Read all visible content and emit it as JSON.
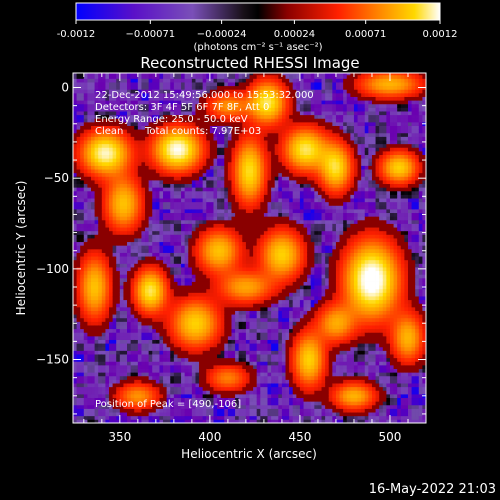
{
  "chart_data": {
    "type": "heatmap",
    "title": "Reconstructed RHESSI Image",
    "xlabel": "Heliocentric X (arcsec)",
    "ylabel": "Heliocentric Y (arcsec)",
    "xlim": [
      324,
      520
    ],
    "ylim": [
      -185,
      8
    ],
    "x_ticks": [
      350,
      400,
      450,
      500
    ],
    "y_ticks": [
      0,
      -50,
      -100,
      -150
    ],
    "colorbar": {
      "range": [
        -0.0012,
        0.0012
      ],
      "tick_values": [
        -0.0012,
        -0.00071,
        -0.00024,
        0.00024,
        0.00071,
        0.0012
      ],
      "tick_labels": [
        "-0.0012",
        "−0.00071",
        "−0.00024",
        "0.00024",
        "0.00071",
        "0.0012"
      ],
      "units_label": "(photons cm⁻² s⁻¹ asec⁻²)",
      "colors": [
        "#0000ff",
        "#6a00b0",
        "#7a4fb8",
        "#000000",
        "#8a0000",
        "#ff2000",
        "#ff8c00",
        "#ffd800",
        "#ffffff"
      ]
    },
    "annotations": {
      "time_range": "22-Dec-2012 15:49:56.000 to 15:53:32.000",
      "detectors": "Detectors: 3F 4F 5F 6F 7F 8F, Att 0",
      "energy": "Energy Range: 25.0 - 50.0 keV",
      "method": "Clean",
      "counts": "Total counts: 7.97E+03",
      "peak": "Position of Peak = [490,-106]"
    },
    "peak": {
      "x": 490,
      "y": -106,
      "value": 0.0012
    },
    "sources": [
      {
        "x": 490,
        "y": -106,
        "amp": 1.0,
        "sx": 10,
        "sy": 14
      },
      {
        "x": 342,
        "y": -36,
        "amp": 0.85,
        "sx": 9,
        "sy": 8
      },
      {
        "x": 382,
        "y": -34,
        "amp": 0.9,
        "sx": 9,
        "sy": 8
      },
      {
        "x": 432,
        "y": -8,
        "amp": 0.75,
        "sx": 7,
        "sy": 8
      },
      {
        "x": 422,
        "y": -46,
        "amp": 0.7,
        "sx": 6,
        "sy": 12
      },
      {
        "x": 453,
        "y": -34,
        "amp": 0.75,
        "sx": 8,
        "sy": 8
      },
      {
        "x": 470,
        "y": -44,
        "amp": 0.7,
        "sx": 6,
        "sy": 9
      },
      {
        "x": 505,
        "y": -44,
        "amp": 0.65,
        "sx": 7,
        "sy": 6
      },
      {
        "x": 500,
        "y": 2,
        "amp": 0.55,
        "sx": 12,
        "sy": 5
      },
      {
        "x": 352,
        "y": -64,
        "amp": 0.6,
        "sx": 7,
        "sy": 10
      },
      {
        "x": 336,
        "y": -110,
        "amp": 0.6,
        "sx": 6,
        "sy": 12
      },
      {
        "x": 367,
        "y": -112,
        "amp": 0.75,
        "sx": 6,
        "sy": 8
      },
      {
        "x": 405,
        "y": -90,
        "amp": 0.6,
        "sx": 8,
        "sy": 8
      },
      {
        "x": 392,
        "y": -130,
        "amp": 0.65,
        "sx": 9,
        "sy": 9
      },
      {
        "x": 440,
        "y": -92,
        "amp": 0.65,
        "sx": 8,
        "sy": 9
      },
      {
        "x": 420,
        "y": -110,
        "amp": 0.5,
        "sx": 10,
        "sy": 6
      },
      {
        "x": 455,
        "y": -150,
        "amp": 0.65,
        "sx": 6,
        "sy": 10
      },
      {
        "x": 470,
        "y": -130,
        "amp": 0.5,
        "sx": 7,
        "sy": 7
      },
      {
        "x": 510,
        "y": -138,
        "amp": 0.55,
        "sx": 6,
        "sy": 9
      },
      {
        "x": 480,
        "y": -170,
        "amp": 0.55,
        "sx": 8,
        "sy": 5
      },
      {
        "x": 360,
        "y": -170,
        "amp": 0.45,
        "sx": 8,
        "sy": 5
      },
      {
        "x": 410,
        "y": -160,
        "amp": 0.4,
        "sx": 8,
        "sy": 5
      },
      {
        "x": 410,
        "y": -10,
        "amp": 0.45,
        "sx": 8,
        "sy": 5
      }
    ]
  },
  "footer": {
    "timestamp": "16-May-2022 21:03"
  }
}
